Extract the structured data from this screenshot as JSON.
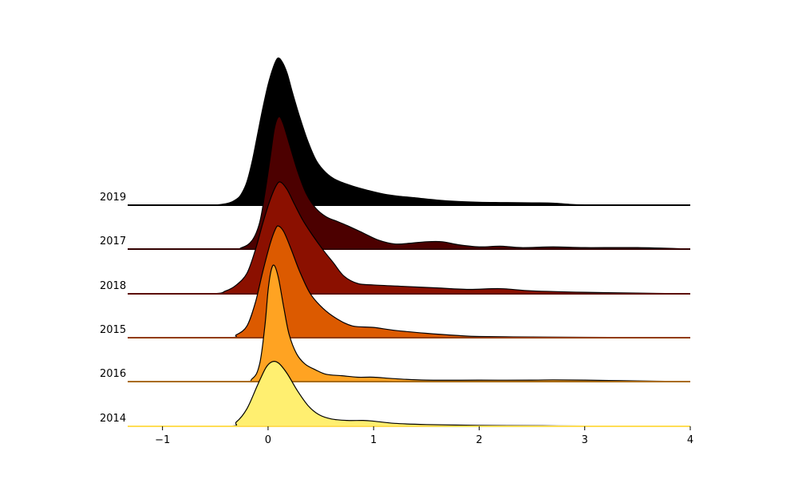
{
  "chart_data": {
    "type": "ridgeline",
    "title": "",
    "xlabel": "",
    "ylabel": "",
    "xlim": [
      -1.33,
      4.0
    ],
    "x_ticks": [
      -1,
      0,
      1,
      2,
      3,
      4
    ],
    "x_tick_labels": [
      "−1",
      "0",
      "1",
      "2",
      "3",
      "4"
    ],
    "grid": false,
    "legend": "none",
    "series": [
      {
        "name": "2019",
        "color": "#000000",
        "points": [
          [
            -1.33,
            0
          ],
          [
            -0.6,
            0
          ],
          [
            -0.4,
            0.01
          ],
          [
            -0.3,
            0.04
          ],
          [
            -0.25,
            0.08
          ],
          [
            -0.2,
            0.16
          ],
          [
            -0.15,
            0.3
          ],
          [
            -0.1,
            0.48
          ],
          [
            -0.05,
            0.66
          ],
          [
            0.0,
            0.82
          ],
          [
            0.05,
            0.94
          ],
          [
            0.09,
            1.0
          ],
          [
            0.13,
            0.98
          ],
          [
            0.18,
            0.9
          ],
          [
            0.23,
            0.77
          ],
          [
            0.3,
            0.6
          ],
          [
            0.38,
            0.43
          ],
          [
            0.46,
            0.3
          ],
          [
            0.55,
            0.22
          ],
          [
            0.65,
            0.17
          ],
          [
            0.8,
            0.13
          ],
          [
            0.95,
            0.1
          ],
          [
            1.1,
            0.075
          ],
          [
            1.25,
            0.06
          ],
          [
            1.4,
            0.05
          ],
          [
            1.6,
            0.035
          ],
          [
            1.8,
            0.025
          ],
          [
            2.0,
            0.02
          ],
          [
            2.2,
            0.018
          ],
          [
            2.5,
            0.016
          ],
          [
            2.7,
            0.014
          ],
          [
            2.85,
            0.006
          ],
          [
            3.0,
            0.002
          ],
          [
            3.3,
            0
          ],
          [
            4.0,
            0
          ]
        ]
      },
      {
        "name": "2017",
        "color": "#4c0000",
        "points": [
          [
            -1.33,
            0
          ],
          [
            -0.4,
            0
          ],
          [
            -0.25,
            0.01
          ],
          [
            -0.15,
            0.06
          ],
          [
            -0.08,
            0.18
          ],
          [
            -0.03,
            0.38
          ],
          [
            0.02,
            0.62
          ],
          [
            0.06,
            0.82
          ],
          [
            0.1,
            0.9
          ],
          [
            0.14,
            0.86
          ],
          [
            0.2,
            0.72
          ],
          [
            0.28,
            0.53
          ],
          [
            0.36,
            0.38
          ],
          [
            0.45,
            0.28
          ],
          [
            0.55,
            0.22
          ],
          [
            0.65,
            0.19
          ],
          [
            0.75,
            0.16
          ],
          [
            0.9,
            0.11
          ],
          [
            1.05,
            0.06
          ],
          [
            1.2,
            0.035
          ],
          [
            1.35,
            0.04
          ],
          [
            1.5,
            0.05
          ],
          [
            1.65,
            0.05
          ],
          [
            1.8,
            0.03
          ],
          [
            2.0,
            0.015
          ],
          [
            2.2,
            0.02
          ],
          [
            2.4,
            0.01
          ],
          [
            2.7,
            0.015
          ],
          [
            3.0,
            0.01
          ],
          [
            3.5,
            0.01
          ],
          [
            4.0,
            0
          ]
        ]
      },
      {
        "name": "2018",
        "color": "#8b1000",
        "points": [
          [
            -1.33,
            0
          ],
          [
            -0.55,
            0
          ],
          [
            -0.4,
            0.02
          ],
          [
            -0.3,
            0.06
          ],
          [
            -0.2,
            0.14
          ],
          [
            -0.12,
            0.3
          ],
          [
            -0.05,
            0.48
          ],
          [
            0.02,
            0.64
          ],
          [
            0.08,
            0.74
          ],
          [
            0.12,
            0.76
          ],
          [
            0.18,
            0.71
          ],
          [
            0.25,
            0.61
          ],
          [
            0.33,
            0.5
          ],
          [
            0.42,
            0.4
          ],
          [
            0.52,
            0.3
          ],
          [
            0.62,
            0.21
          ],
          [
            0.72,
            0.12
          ],
          [
            0.85,
            0.07
          ],
          [
            1.0,
            0.06
          ],
          [
            1.3,
            0.05
          ],
          [
            1.6,
            0.04
          ],
          [
            1.9,
            0.03
          ],
          [
            2.2,
            0.035
          ],
          [
            2.5,
            0.02
          ],
          [
            3.0,
            0.01
          ],
          [
            3.5,
            0.005
          ],
          [
            4.0,
            0
          ]
        ]
      },
      {
        "name": "2015",
        "color": "#dc5a00",
        "points": [
          [
            -1.33,
            0
          ],
          [
            -0.4,
            0
          ],
          [
            -0.3,
            0.02
          ],
          [
            -0.2,
            0.08
          ],
          [
            -0.12,
            0.24
          ],
          [
            -0.05,
            0.45
          ],
          [
            0.02,
            0.64
          ],
          [
            0.07,
            0.74
          ],
          [
            0.1,
            0.76
          ],
          [
            0.15,
            0.72
          ],
          [
            0.22,
            0.6
          ],
          [
            0.3,
            0.45
          ],
          [
            0.4,
            0.3
          ],
          [
            0.52,
            0.2
          ],
          [
            0.65,
            0.13
          ],
          [
            0.8,
            0.08
          ],
          [
            1.0,
            0.07
          ],
          [
            1.2,
            0.05
          ],
          [
            1.5,
            0.03
          ],
          [
            1.8,
            0.015
          ],
          [
            2.0,
            0.008
          ],
          [
            2.5,
            0.005
          ],
          [
            3.0,
            0.003
          ],
          [
            4.0,
            0
          ]
        ]
      },
      {
        "name": "2016",
        "color": "#ffa322",
        "points": [
          [
            -1.33,
            0
          ],
          [
            -0.3,
            0
          ],
          [
            -0.15,
            0.02
          ],
          [
            -0.08,
            0.12
          ],
          [
            -0.03,
            0.38
          ],
          [
            0.0,
            0.62
          ],
          [
            0.03,
            0.76
          ],
          [
            0.06,
            0.79
          ],
          [
            0.1,
            0.7
          ],
          [
            0.15,
            0.5
          ],
          [
            0.2,
            0.32
          ],
          [
            0.27,
            0.19
          ],
          [
            0.35,
            0.12
          ],
          [
            0.45,
            0.08
          ],
          [
            0.55,
            0.05
          ],
          [
            0.7,
            0.04
          ],
          [
            0.85,
            0.03
          ],
          [
            1.0,
            0.03
          ],
          [
            1.2,
            0.02
          ],
          [
            1.5,
            0.01
          ],
          [
            2.0,
            0.01
          ],
          [
            2.5,
            0.01
          ],
          [
            2.7,
            0.012
          ],
          [
            3.0,
            0.01
          ],
          [
            3.5,
            0.005
          ],
          [
            4.0,
            0
          ]
        ]
      },
      {
        "name": "2014",
        "color": "#ffef70",
        "points": [
          [
            -1.33,
            0
          ],
          [
            -0.4,
            0
          ],
          [
            -0.3,
            0.03
          ],
          [
            -0.2,
            0.12
          ],
          [
            -0.1,
            0.28
          ],
          [
            -0.02,
            0.4
          ],
          [
            0.04,
            0.44
          ],
          [
            0.1,
            0.43
          ],
          [
            0.18,
            0.36
          ],
          [
            0.28,
            0.24
          ],
          [
            0.38,
            0.14
          ],
          [
            0.48,
            0.08
          ],
          [
            0.6,
            0.05
          ],
          [
            0.75,
            0.04
          ],
          [
            0.9,
            0.04
          ],
          [
            1.0,
            0.035
          ],
          [
            1.2,
            0.02
          ],
          [
            1.5,
            0.012
          ],
          [
            2.0,
            0.006
          ],
          [
            2.6,
            0.004
          ],
          [
            3.0,
            0.002
          ],
          [
            4.0,
            0
          ]
        ]
      }
    ]
  }
}
